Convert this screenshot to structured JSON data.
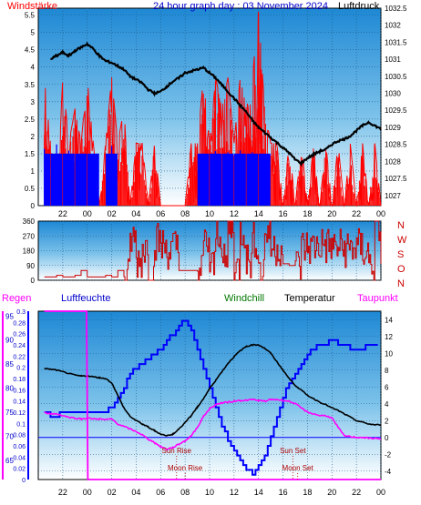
{
  "chart_data": [
    {
      "type": "line",
      "title": "24 hour graph day : 03 November 2024",
      "left_label": "Windstärke",
      "right_label": "Luftdruck",
      "x_ticks": [
        "22",
        "00",
        "02",
        "04",
        "06",
        "08",
        "10",
        "12",
        "14",
        "16",
        "18",
        "20",
        "22",
        "00"
      ],
      "y_left_ticks": [
        "0",
        "0.5",
        "1",
        "1.5",
        "2",
        "2.5",
        "3",
        "3.5",
        "4",
        "4.5",
        "5",
        "5.5"
      ],
      "y_left_range": [
        0,
        5.7
      ],
      "y_right_ticks": [
        "1027",
        "1027.5",
        "1028",
        "1028.5",
        "1029",
        "1029.5",
        "1030",
        "1030.5",
        "1031",
        "1031.5",
        "1032",
        "1032.5"
      ],
      "y_right_range": [
        1026.7,
        1032.5
      ],
      "grid": true,
      "colors": {
        "pressure": "#000000",
        "gust": "#ff0000",
        "wind": "#0000ff"
      },
      "series": [
        {
          "key": "pressure",
          "axis": "right",
          "x": [
            -3,
            -2.5,
            -2,
            -1.5,
            -1,
            -0.5,
            0,
            0.5,
            1,
            1.5,
            2,
            2.5,
            3,
            3.5,
            4,
            4.5,
            5,
            5.5,
            6,
            6.5,
            7,
            7.5,
            8,
            8.5,
            9,
            9.5,
            10,
            10.5,
            11,
            11.5,
            12,
            12.5,
            13,
            13.5,
            14,
            14.5,
            15,
            15.5,
            16,
            16.5,
            17,
            17.5,
            18,
            18.5,
            19,
            19.5,
            20,
            20.5,
            21,
            21.5,
            22,
            22.5,
            23,
            23.5,
            24
          ],
          "y": [
            1031.0,
            1031.1,
            1031.2,
            1031.1,
            1031.25,
            1031.35,
            1031.45,
            1031.3,
            1031.1,
            1030.95,
            1030.9,
            1030.8,
            1030.7,
            1030.5,
            1030.4,
            1030.3,
            1030.1,
            1030.0,
            1030.05,
            1030.2,
            1030.35,
            1030.45,
            1030.6,
            1030.65,
            1030.7,
            1030.75,
            1030.6,
            1030.45,
            1030.25,
            1030.05,
            1029.85,
            1029.65,
            1029.45,
            1029.2,
            1029.0,
            1028.85,
            1028.7,
            1028.55,
            1028.4,
            1028.25,
            1028.05,
            1027.95,
            1028.1,
            1028.2,
            1028.3,
            1028.35,
            1028.5,
            1028.6,
            1028.65,
            1028.75,
            1028.9,
            1029.05,
            1029.15,
            1029.05,
            1028.95
          ]
        },
        {
          "key": "gust",
          "axis": "left",
          "x": [
            -3.5,
            -3,
            -2.5,
            -2,
            -1.5,
            -1,
            -0.5,
            0,
            0.5,
            1,
            1.5,
            2,
            2.5,
            3,
            3.5,
            4,
            4.5,
            5,
            5.5,
            6,
            6.5,
            7,
            7.5,
            8,
            8.5,
            9,
            9.5,
            10,
            10.5,
            11,
            11.5,
            12,
            12.5,
            13,
            13.5,
            14,
            14.5,
            15,
            15.5,
            16,
            16.5,
            17,
            17.5,
            18,
            18.5,
            19,
            19.5,
            20,
            20.5,
            21,
            21.5,
            22,
            22.5,
            23,
            23.5,
            24
          ],
          "y": [
            3.7,
            1.8,
            0,
            3.7,
            1.8,
            2.8,
            1.8,
            3.7,
            1.8,
            0,
            1.8,
            3.7,
            1.8,
            2.8,
            0,
            1.8,
            1.8,
            0,
            1.8,
            0,
            0,
            0,
            0,
            0,
            1.8,
            1.8,
            3.7,
            1.8,
            3.7,
            2.8,
            3.7,
            1.8,
            3.7,
            2.8,
            3.7,
            5.6,
            2.8,
            1.8,
            1.8,
            0,
            1.8,
            0,
            1.8,
            0,
            1.8,
            0,
            1.8,
            0,
            1.8,
            0,
            1.8,
            0,
            1.8,
            0,
            1.8,
            0
          ]
        },
        {
          "key": "wind",
          "axis": "left",
          "x": [
            -3.5,
            -3,
            -2.5,
            -2,
            -1.5,
            -1,
            -0.5,
            0,
            0.5,
            1,
            1.5,
            2,
            2.5,
            3,
            3.5,
            4,
            4.5,
            5,
            5.5,
            6,
            6.5,
            7,
            7.5,
            8,
            8.5,
            9,
            9.5,
            10,
            10.5,
            11,
            11.5,
            12,
            12.5,
            13,
            13.5,
            14,
            14.5,
            15,
            15.5,
            16,
            16.5,
            17,
            17.5,
            18,
            18.5,
            19,
            19.5,
            20,
            20.5,
            21,
            21.5,
            22,
            22.5,
            23,
            23.5,
            24
          ],
          "y": [
            1.8,
            0,
            1.8,
            0,
            1.8,
            0,
            1.8,
            0,
            1.8,
            0,
            0,
            1.8,
            0,
            0,
            0,
            0,
            0,
            0,
            0,
            0,
            0,
            0,
            0,
            0,
            0,
            0,
            1.8,
            0,
            1.8,
            0,
            1.8,
            0,
            1.8,
            0,
            1.8,
            0,
            1.8,
            0,
            0,
            0,
            0,
            0,
            0,
            0,
            0,
            0,
            0,
            0,
            0,
            0,
            0,
            0,
            0,
            0,
            0,
            0
          ]
        }
      ]
    },
    {
      "type": "line",
      "right_labels": [
        "N",
        "W",
        "S",
        "O",
        "N"
      ],
      "x_ticks": [],
      "y_left_ticks": [
        "0",
        "90",
        "180",
        "270",
        "360"
      ],
      "y_left_range": [
        0,
        360
      ],
      "grid": true,
      "colors": {
        "direction": "#cc0000"
      },
      "series": [
        {
          "key": "direction",
          "axis": "left",
          "x": [
            -3.5,
            -3,
            -2.5,
            -2,
            -1.5,
            -1,
            -0.5,
            0,
            0.5,
            1,
            1.5,
            2,
            2.5,
            3,
            3.5,
            4,
            4.5,
            5,
            5.5,
            6,
            6.5,
            7,
            7.5,
            8,
            8.5,
            9,
            9.5,
            10,
            10.5,
            11,
            11.5,
            12,
            12.5,
            13,
            13.5,
            14,
            14.5,
            15,
            15.5,
            16,
            16.5,
            17,
            17.5,
            18,
            18.5,
            19,
            19.5,
            20,
            20.5,
            21,
            21.5,
            22,
            22.5,
            23,
            23.5,
            24
          ],
          "y": [
            20,
            20,
            30,
            20,
            20,
            30,
            60,
            20,
            20,
            20,
            30,
            20,
            60,
            20,
            250,
            120,
            200,
            20,
            240,
            210,
            180,
            200,
            60,
            60,
            60,
            60,
            230,
            80,
            300,
            100,
            330,
            70,
            300,
            120,
            240,
            60,
            300,
            200,
            200,
            100,
            90,
            90,
            200,
            200,
            210,
            220,
            210,
            200,
            200,
            190,
            200,
            200,
            180,
            100,
            330,
            100
          ]
        }
      ]
    },
    {
      "type": "line",
      "legend": [
        "Regen",
        "Luftfeuchte",
        "Windchill",
        "Temperatur",
        "Taupunkt"
      ],
      "x_ticks": [
        "22",
        "00",
        "02",
        "04",
        "06",
        "08",
        "10",
        "12",
        "14",
        "16",
        "18",
        "20",
        "22",
        "00"
      ],
      "y_rain_ticks": [
        "0",
        "0.02",
        "0.04",
        "0.06",
        "0.08",
        "0.1",
        "0.12",
        "0.14",
        "0.16",
        "0.18",
        "0.2",
        "0.22",
        "0.24",
        "0.26",
        "0.28",
        "0.3"
      ],
      "y_humidity_ticks": [
        "65",
        "70",
        "75",
        "80",
        "85",
        "90",
        "95"
      ],
      "y_temp_ticks": [
        "-4",
        "-2",
        "0",
        "2",
        "4",
        "6",
        "8",
        "10",
        "12",
        "14"
      ],
      "y_temp_range": [
        -5,
        15
      ],
      "annotations": [
        {
          "label": "Sun Rise",
          "x": 7.3
        },
        {
          "label": "Moon Rise",
          "x": 8.0
        },
        {
          "label": "Sun Set",
          "x": 16.8
        },
        {
          "label": "Moon Set",
          "x": 17.2
        }
      ],
      "grid": true,
      "colors": {
        "temperature": "#000000",
        "dewpoint": "#ff00ff",
        "humidity": "#0000ff",
        "rain": "#ff00ff",
        "zero": "#0000ff"
      },
      "series": [
        {
          "key": "temperature",
          "axis": "temp",
          "x": [
            -3.5,
            -3,
            -2.5,
            -2,
            -1.5,
            -1,
            -0.5,
            0,
            0.5,
            1,
            1.5,
            2,
            2.5,
            3,
            3.5,
            4,
            4.5,
            5,
            5.5,
            6,
            6.5,
            7,
            7.5,
            8,
            8.5,
            9,
            9.5,
            10,
            10.5,
            11,
            11.5,
            12,
            12.5,
            13,
            13.5,
            14,
            14.5,
            15,
            15.5,
            16,
            16.5,
            17,
            17.5,
            18,
            18.5,
            19,
            19.5,
            20,
            20.5,
            21,
            21.5,
            22,
            22.5,
            23,
            23.5,
            24
          ],
          "y": [
            8.2,
            8.1,
            8.0,
            7.8,
            7.6,
            7.4,
            7.3,
            7.3,
            7.2,
            7.1,
            7.0,
            6.5,
            5.0,
            3.5,
            2.5,
            2.0,
            1.6,
            1.2,
            0.8,
            0.4,
            0.2,
            0.4,
            1.0,
            1.8,
            2.6,
            3.6,
            4.6,
            5.8,
            6.8,
            7.8,
            8.8,
            9.6,
            10.3,
            10.8,
            11.0,
            11.0,
            10.6,
            10.0,
            9.0,
            8.0,
            7.0,
            6.2,
            5.6,
            5.0,
            4.6,
            4.2,
            3.9,
            3.5,
            3.2,
            2.8,
            2.4,
            2.0,
            1.8,
            1.6,
            1.5,
            1.5
          ]
        },
        {
          "key": "dewpoint",
          "axis": "temp",
          "x": [
            -3.5,
            -3,
            -2.5,
            -2,
            -1.5,
            -1,
            -0.5,
            0,
            0.5,
            1,
            1.5,
            2,
            2.5,
            3,
            3.5,
            4,
            4.5,
            5,
            5.5,
            6,
            6.5,
            7,
            7.5,
            8,
            8.5,
            9,
            9.5,
            10,
            10.5,
            11,
            11.5,
            12,
            12.5,
            13,
            13.5,
            14,
            14.5,
            15,
            15.5,
            16,
            16.5,
            17,
            17.5,
            18,
            18.5,
            19,
            19.5,
            20,
            20.5,
            21,
            21.5,
            22,
            22.5,
            23,
            23.5,
            24
          ],
          "y": [
            3.0,
            2.8,
            2.8,
            2.6,
            2.4,
            2.3,
            2.2,
            2.3,
            2.2,
            2.2,
            2.1,
            2.2,
            1.6,
            1.3,
            1.0,
            0.7,
            0.3,
            -0.2,
            -0.6,
            -1.1,
            -1.4,
            -1.2,
            -0.8,
            -0.4,
            0.2,
            1.2,
            2.5,
            3.4,
            3.9,
            4.1,
            4.2,
            4.3,
            4.4,
            4.4,
            4.5,
            4.4,
            4.3,
            4.5,
            4.5,
            4.4,
            4.3,
            4.0,
            3.5,
            3.0,
            2.8,
            2.6,
            2.6,
            2.3,
            1.2,
            0.2,
            0.1,
            0.0,
            0.0,
            -0.1,
            -0.1,
            -0.2
          ]
        },
        {
          "key": "humidity",
          "axis": "humidity",
          "x": [
            -3.5,
            -3,
            -2.5,
            -2,
            -1.5,
            -1,
            -0.5,
            0,
            0.5,
            1,
            1.5,
            2,
            2.5,
            3,
            3.5,
            4,
            4.5,
            5,
            5.5,
            6,
            6.5,
            7,
            7.5,
            8,
            8.5,
            9,
            9.5,
            10,
            10.5,
            11,
            11.5,
            12,
            12.5,
            13,
            13.5,
            14,
            14.5,
            15,
            15.5,
            16,
            16.5,
            17,
            17.5,
            18,
            18.5,
            19,
            19.5,
            20,
            20.5,
            21,
            21.5,
            22,
            22.5,
            23,
            23.5,
            24
          ],
          "y": [
            75,
            74,
            74,
            75,
            75,
            75,
            75,
            75,
            75,
            75,
            75,
            76,
            78,
            80,
            83,
            84,
            85,
            86,
            87,
            88,
            90,
            91,
            93,
            94,
            92,
            88,
            84,
            80,
            76,
            72,
            69,
            67,
            65,
            63,
            62,
            64,
            66,
            70,
            74,
            78,
            81,
            83,
            85,
            87,
            88,
            89,
            89,
            90,
            89,
            89,
            88,
            88,
            88,
            89,
            89,
            89
          ]
        },
        {
          "key": "rain",
          "axis": "rain",
          "x": [
            -3.5,
            -0.05,
            0.05,
            24
          ],
          "y": [
            0.3,
            0.3,
            0,
            0
          ]
        }
      ]
    }
  ]
}
